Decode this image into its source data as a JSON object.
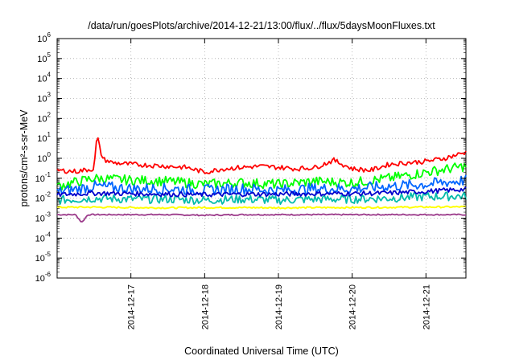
{
  "chart_data": {
    "type": "line",
    "title": "/data/run/goesPlots/archive/2014-12-21/13:00/flux/../flux/5daysMoonFluxes.txt",
    "xlabel": "Coordinated Universal Time (UTC)",
    "ylabel": "protons/cm²-s-sr-MeV",
    "y_scale": "log",
    "ylim": [
      1e-06,
      1000000.0
    ],
    "xlim": [
      2014.1216,
      2014.12216
    ],
    "x_unit_note": "",
    "x_ticks": [
      "2014-12-17",
      "2014-12-18",
      "2014-12-19",
      "2014-12-20",
      "2014-12-21"
    ],
    "y_ticks": [
      {
        "base": "10",
        "exp": "-6"
      },
      {
        "base": "10",
        "exp": "-5"
      },
      {
        "base": "10",
        "exp": "-4"
      },
      {
        "base": "10",
        "exp": "-3"
      },
      {
        "base": "10",
        "exp": "-2"
      },
      {
        "base": "10",
        "exp": "-1"
      },
      {
        "base": "10",
        "exp": "0"
      },
      {
        "base": "10",
        "exp": "1"
      },
      {
        "base": "10",
        "exp": "2"
      },
      {
        "base": "10",
        "exp": "3"
      },
      {
        "base": "10",
        "exp": "4"
      },
      {
        "base": "10",
        "exp": "5"
      },
      {
        "base": "10",
        "exp": "6"
      }
    ],
    "grid": true,
    "x_start": "2014-12-16T00:00",
    "x_end": "2014-12-21T13:00",
    "series": [
      {
        "color": "#ff0000",
        "style": "red-proxy",
        "x": [
          "2014-12-16T00:00",
          "2014-12-16T06:00",
          "2014-12-16T12:00",
          "2014-12-16T13:00",
          "2014-12-16T14:00",
          "2014-12-16T15:00",
          "2014-12-16T18:00",
          "2014-12-17T00:00",
          "2014-12-17T06:00",
          "2014-12-17T12:00",
          "2014-12-17T18:00",
          "2014-12-18T00:00",
          "2014-12-18T06:00",
          "2014-12-18T12:00",
          "2014-12-18T18:00",
          "2014-12-19T00:00",
          "2014-12-19T06:00",
          "2014-12-19T12:00",
          "2014-12-19T18:00",
          "2014-12-20T00:00",
          "2014-12-20T06:00",
          "2014-12-20T12:00",
          "2014-12-20T18:00",
          "2014-12-21T00:00",
          "2014-12-21T06:00",
          "2014-12-21T13:00"
        ],
        "values": [
          0.25,
          0.22,
          0.3,
          15,
          2.5,
          0.9,
          0.6,
          0.5,
          0.45,
          0.4,
          0.35,
          0.2,
          0.3,
          0.35,
          0.4,
          0.35,
          0.3,
          0.35,
          0.8,
          0.3,
          0.25,
          0.5,
          0.6,
          0.7,
          1.0,
          2.0
        ]
      },
      {
        "color": "#00ff00",
        "x": [
          "2014-12-16T00:00",
          "2014-12-16T12:00",
          "2014-12-17T00:00",
          "2014-12-17T12:00",
          "2014-12-18T00:00",
          "2014-12-18T12:00",
          "2014-12-19T00:00",
          "2014-12-19T12:00",
          "2014-12-20T00:00",
          "2014-12-20T12:00",
          "2014-12-21T00:00",
          "2014-12-21T13:00"
        ],
        "values": [
          0.04,
          0.1,
          0.08,
          0.07,
          0.05,
          0.06,
          0.05,
          0.07,
          0.06,
          0.1,
          0.2,
          0.4
        ]
      },
      {
        "color": "#0066ff",
        "x": [
          "2014-12-16T00:00",
          "2014-12-16T12:00",
          "2014-12-17T00:00",
          "2014-12-17T12:00",
          "2014-12-18T00:00",
          "2014-12-18T12:00",
          "2014-12-19T00:00",
          "2014-12-19T12:00",
          "2014-12-20T00:00",
          "2014-12-20T12:00",
          "2014-12-21T00:00",
          "2014-12-21T13:00"
        ],
        "values": [
          0.02,
          0.04,
          0.03,
          0.03,
          0.025,
          0.03,
          0.025,
          0.03,
          0.03,
          0.04,
          0.05,
          0.08
        ]
      },
      {
        "color": "#00bbaa",
        "x": [
          "2014-12-16T00:00",
          "2014-12-16T12:00",
          "2014-12-17T00:00",
          "2014-12-17T12:00",
          "2014-12-18T00:00",
          "2014-12-18T12:00",
          "2014-12-19T00:00",
          "2014-12-19T12:00",
          "2014-12-20T00:00",
          "2014-12-20T12:00",
          "2014-12-21T00:00",
          "2014-12-21T13:00"
        ],
        "values": [
          0.008,
          0.01,
          0.009,
          0.009,
          0.008,
          0.009,
          0.008,
          0.009,
          0.009,
          0.01,
          0.012,
          0.013
        ]
      },
      {
        "color": "#0000cc",
        "x": [
          "2014-12-16T00:00",
          "2014-12-16T12:00",
          "2014-12-17T00:00",
          "2014-12-17T12:00",
          "2014-12-18T00:00",
          "2014-12-18T12:00",
          "2014-12-19T00:00",
          "2014-12-19T12:00",
          "2014-12-20T00:00",
          "2014-12-20T12:00",
          "2014-12-21T00:00",
          "2014-12-21T13:00"
        ],
        "values": [
          0.015,
          0.018,
          0.017,
          0.016,
          0.015,
          0.016,
          0.016,
          0.017,
          0.017,
          0.018,
          0.022,
          0.028
        ]
      },
      {
        "color": "#ffff00",
        "x": [
          "2014-12-16T00:00",
          "2014-12-16T12:00",
          "2014-12-17T00:00",
          "2014-12-17T12:00",
          "2014-12-18T00:00",
          "2014-12-18T12:00",
          "2014-12-19T00:00",
          "2014-12-19T12:00",
          "2014-12-20T00:00",
          "2014-12-20T12:00",
          "2014-12-21T00:00",
          "2014-12-21T13:00"
        ],
        "values": [
          0.0035,
          0.0036,
          0.0034,
          0.0033,
          0.0034,
          0.0034,
          0.0033,
          0.0034,
          0.0034,
          0.0035,
          0.0036,
          0.0037
        ]
      },
      {
        "color": "#9b3a8a",
        "x": [
          "2014-12-16T00:00",
          "2014-12-16T06:00",
          "2014-12-16T08:00",
          "2014-12-16T10:00",
          "2014-12-16T12:00",
          "2014-12-17T00:00",
          "2014-12-17T12:00",
          "2014-12-18T00:00",
          "2014-12-18T12:00",
          "2014-12-19T00:00",
          "2014-12-19T12:00",
          "2014-12-20T00:00",
          "2014-12-20T12:00",
          "2014-12-21T00:00",
          "2014-12-21T13:00"
        ],
        "values": [
          0.0015,
          0.0015,
          0.0006,
          0.0015,
          0.0015,
          0.0015,
          0.0015,
          0.0014,
          0.0015,
          0.0015,
          0.0015,
          0.0015,
          0.0015,
          0.0015,
          0.0015
        ]
      }
    ]
  }
}
